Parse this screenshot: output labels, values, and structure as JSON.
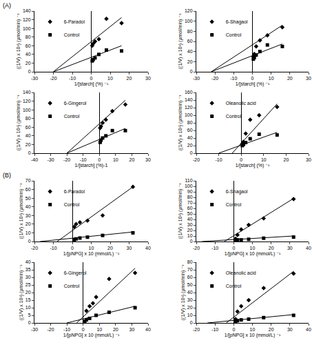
{
  "panel_labels": [
    "(A)",
    "(B)"
  ],
  "chart_data": [
    {
      "type": "scatter",
      "xlabel": "1/[starch] (%) ⁻¹",
      "ylabel": "((1/V) x 10³) (µmol/min) ⁻¹",
      "xlim": [
        -30,
        30
      ],
      "xticks": [
        -30,
        -20,
        -10,
        0,
        10,
        20,
        30
      ],
      "ylim": [
        0,
        140
      ],
      "yticks": [
        0,
        20,
        40,
        60,
        80,
        100,
        120,
        140
      ],
      "series": [
        {
          "name": "6-Paradol",
          "color": "#000000",
          "marker": "diamond",
          "line_style": "solid",
          "x": [
            0.5,
            1,
            2,
            4,
            8,
            16
          ],
          "values": [
            60,
            65,
            70,
            75,
            122,
            112
          ],
          "fit": {
            "x": [
              -20,
              16
            ],
            "values": [
              0,
              125
            ]
          }
        },
        {
          "name": "Control",
          "color": "#000000",
          "marker": "square",
          "line_style": "solid",
          "x": [
            0.5,
            1,
            2,
            4,
            8,
            16
          ],
          "values": [
            25,
            28,
            32,
            40,
            50,
            48
          ],
          "fit": {
            "x": [
              -20,
              16
            ],
            "values": [
              0,
              60
            ]
          }
        }
      ]
    },
    {
      "type": "scatter",
      "xlabel": "1/[starch] (%) ⁻¹",
      "ylabel": "((1/V) x 10³) (µmol/min) ⁻¹",
      "xlim": [
        -30,
        30
      ],
      "xticks": [
        -30,
        -20,
        -10,
        0,
        10,
        20,
        30
      ],
      "ylim": [
        0,
        120
      ],
      "yticks": [
        0,
        20,
        40,
        60,
        80,
        100,
        120
      ],
      "series": [
        {
          "name": "6-Shagaol",
          "color": "#000000",
          "marker": "diamond",
          "line_style": "solid",
          "x": [
            0.5,
            1,
            2,
            4,
            8,
            16
          ],
          "values": [
            30,
            35,
            50,
            62,
            72,
            88
          ],
          "fit": {
            "x": [
              -22,
              16
            ],
            "values": [
              0,
              92
            ]
          }
        },
        {
          "name": "Control",
          "color": "#000000",
          "marker": "square",
          "line_style": "solid",
          "x": [
            0.5,
            1,
            2,
            4,
            8,
            16
          ],
          "values": [
            25,
            28,
            33,
            40,
            53,
            50
          ],
          "fit": {
            "x": [
              -22,
              16
            ],
            "values": [
              0,
              55
            ]
          }
        }
      ]
    },
    {
      "type": "scatter",
      "xlabel": "1/[starch] (%)-1",
      "ylabel": "((1/V) x 10³) (µmol/min) ⁻¹",
      "xlim": [
        -40,
        30
      ],
      "xticks": [
        -40,
        -30,
        -20,
        -10,
        0,
        10,
        20,
        30
      ],
      "ylim": [
        0,
        140
      ],
      "yticks": [
        0,
        20,
        40,
        60,
        80,
        100,
        120,
        140
      ],
      "series": [
        {
          "name": "6-Gingerol",
          "color": "#000000",
          "marker": "diamond",
          "line_style": "solid",
          "x": [
            0.5,
            1,
            2,
            4,
            8,
            16
          ],
          "values": [
            58,
            62,
            70,
            77,
            97,
            112
          ],
          "fit": {
            "x": [
              -20,
              16
            ],
            "values": [
              0,
              122
            ]
          }
        },
        {
          "name": "Control",
          "color": "#000000",
          "marker": "square",
          "line_style": "solid",
          "x": [
            0.5,
            1,
            2,
            4,
            8,
            16
          ],
          "values": [
            25,
            30,
            35,
            40,
            52,
            52
          ],
          "fit": {
            "x": [
              -20,
              16
            ],
            "values": [
              0,
              57
            ]
          }
        }
      ]
    },
    {
      "type": "scatter",
      "xlabel": "1/[starch] (%) ⁻¹",
      "ylabel": "((1/V) x 10³) (µmol/min) ⁻¹",
      "xlim": [
        -20,
        30
      ],
      "xticks": [
        -20,
        -10,
        0,
        10,
        20,
        30
      ],
      "ylim": [
        0,
        160
      ],
      "yticks": [
        0,
        20,
        40,
        60,
        80,
        100,
        120,
        140,
        160
      ],
      "series": [
        {
          "name": "Oleanolic acid",
          "color": "#000000",
          "marker": "diamond",
          "line_style": "solid",
          "x": [
            0.5,
            1,
            2,
            4,
            8,
            16
          ],
          "values": [
            25,
            30,
            52,
            88,
            100,
            122
          ],
          "fit": {
            "x": [
              -4,
              16
            ],
            "values": [
              0,
              130
            ]
          }
        },
        {
          "name": "Control",
          "color": "#000000",
          "marker": "square",
          "line_style": "solid",
          "x": [
            0.5,
            1,
            2,
            4,
            8,
            16
          ],
          "values": [
            20,
            23,
            28,
            38,
            50,
            48
          ],
          "fit": {
            "x": [
              -10,
              16
            ],
            "values": [
              0,
              55
            ]
          }
        }
      ]
    },
    {
      "type": "scatter",
      "xlabel": "1/[pNPG] x 10 (mmol/L) ⁻¹",
      "ylabel": "((1/V) x 10³) (µmol/min) ⁻¹",
      "xlim": [
        -20,
        40
      ],
      "xticks": [
        -20,
        -10,
        0,
        10,
        20,
        30,
        40
      ],
      "ylim": [
        0,
        70
      ],
      "yticks": [
        0,
        10,
        20,
        30,
        40,
        50,
        60,
        70
      ],
      "series": [
        {
          "name": "6-Paradol",
          "color": "#000000",
          "marker": "diamond",
          "line_style": "solid",
          "x": [
            1,
            2,
            4,
            8,
            16,
            32
          ],
          "values": [
            17,
            20,
            22,
            24,
            30,
            63
          ],
          "fit": {
            "x": [
              -8,
              32
            ],
            "values": [
              0,
              63
            ]
          }
        },
        {
          "name": "Control",
          "color": "#000000",
          "marker": "square",
          "line_style": "solid",
          "x": [
            1,
            2,
            4,
            8,
            16,
            32
          ],
          "values": [
            2,
            3,
            4,
            5,
            7,
            10
          ],
          "fit": {
            "x": [
              -17,
              32
            ],
            "values": [
              0,
              11
            ]
          }
        }
      ]
    },
    {
      "type": "scatter",
      "xlabel": "1/[pNPG] x 10 (mmol/L) ⁻¹",
      "ylabel": "((1/V) x 10³) (µmol/min) ⁻¹",
      "xlim": [
        -20,
        40
      ],
      "xticks": [
        -20,
        -10,
        0,
        10,
        20,
        30,
        40
      ],
      "ylim": [
        0,
        110
      ],
      "yticks": [
        0,
        10,
        20,
        30,
        40,
        50,
        60,
        70,
        80,
        90,
        100,
        110
      ],
      "series": [
        {
          "name": "6-Shagaol",
          "color": "#000000",
          "marker": "diamond",
          "line_style": "solid",
          "x": [
            1,
            2,
            4,
            8,
            16,
            32
          ],
          "values": [
            5,
            12,
            22,
            30,
            42,
            77
          ],
          "fit": {
            "x": [
              -5,
              32
            ],
            "values": [
              0,
              78
            ]
          }
        },
        {
          "name": "Control",
          "color": "#000000",
          "marker": "square",
          "line_style": "solid",
          "x": [
            1,
            2,
            4,
            8,
            16,
            32
          ],
          "values": [
            2,
            3,
            3,
            4,
            6,
            8
          ],
          "fit": {
            "x": [
              -17,
              32
            ],
            "values": [
              0,
              10
            ]
          }
        }
      ]
    },
    {
      "type": "scatter",
      "xlabel": "1/[pNPG] x 10 (mmol/L) ⁻¹",
      "ylabel": "((1/V) x 10³) (µmol/min) ⁻¹",
      "xlim": [
        -30,
        40
      ],
      "xticks": [
        -30,
        -20,
        -10,
        0,
        10,
        20,
        30,
        40
      ],
      "ylim": [
        0,
        40
      ],
      "yticks": [
        0,
        5,
        10,
        15,
        20,
        25,
        30,
        35,
        40
      ],
      "series": [
        {
          "name": "6-Gingerol",
          "color": "#000000",
          "marker": "diamond",
          "line_style": "solid",
          "x": [
            2,
            4,
            6,
            8,
            16,
            32
          ],
          "values": [
            8,
            11,
            13,
            17,
            29,
            33
          ],
          "fit": {
            "x": [
              -4,
              32
            ],
            "values": [
              0,
              36
            ]
          }
        },
        {
          "name": "Control",
          "color": "#000000",
          "marker": "square",
          "line_style": "solid",
          "x": [
            1,
            2,
            4,
            8,
            16,
            32
          ],
          "values": [
            1,
            2,
            3,
            5,
            7,
            10
          ],
          "fit": {
            "x": [
              -10,
              32
            ],
            "values": [
              0,
              11
            ]
          }
        }
      ]
    },
    {
      "type": "scatter",
      "xlabel": "1/[pNPG] x 10 (mmol/L) ⁻¹",
      "ylabel": "((1/V) x 10³) (µmol/min) ⁻¹",
      "xlim": [
        -20,
        40
      ],
      "xticks": [
        -20,
        -10,
        0,
        10,
        20,
        30,
        40
      ],
      "ylim": [
        0,
        80
      ],
      "yticks": [
        0,
        10,
        20,
        30,
        40,
        50,
        60,
        70,
        80
      ],
      "series": [
        {
          "name": "Oleanolic acid",
          "color": "#000000",
          "marker": "diamond",
          "line_style": "solid",
          "x": [
            1,
            2,
            4,
            8,
            16,
            32
          ],
          "values": [
            5,
            15,
            22,
            30,
            46,
            65
          ],
          "fit": {
            "x": [
              -4,
              32
            ],
            "values": [
              0,
              68
            ]
          }
        },
        {
          "name": "Control",
          "color": "#000000",
          "marker": "square",
          "line_style": "solid",
          "x": [
            1,
            2,
            4,
            8,
            16,
            32
          ],
          "values": [
            2,
            3,
            4,
            5,
            7,
            10
          ],
          "fit": {
            "x": [
              -14,
              32
            ],
            "values": [
              0,
              11
            ]
          }
        }
      ]
    }
  ]
}
